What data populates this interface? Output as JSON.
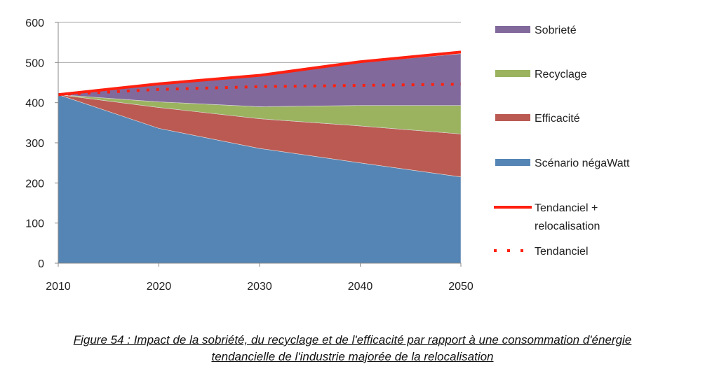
{
  "chart_data": {
    "type": "area",
    "title": "",
    "xlabel": "",
    "ylabel": "",
    "x": [
      2010,
      2020,
      2030,
      2040,
      2050
    ],
    "ylim": [
      0,
      600
    ],
    "yticks": [
      0,
      100,
      200,
      300,
      400,
      500,
      600
    ],
    "xticks": [
      2010,
      2020,
      2030,
      2040,
      2050
    ],
    "grid": "horizontal",
    "legend_position": "right",
    "stacked_series": [
      {
        "name": "Scénario négaWatt",
        "color": "#5585b5",
        "values": [
          420,
          336,
          286,
          250,
          215
        ]
      },
      {
        "name": "Efficacité",
        "color": "#bb5a52",
        "values": [
          0,
          52,
          74,
          92,
          107
        ]
      },
      {
        "name": "Recyclage",
        "color": "#9bb35f",
        "values": [
          0,
          14,
          30,
          51,
          71
        ]
      },
      {
        "name": "Sobrieté",
        "color": "#82699c",
        "values": [
          0,
          44,
          76,
          107,
          129
        ]
      }
    ],
    "line_series": [
      {
        "name": "Tendanciel + relocalisation",
        "color": "#ff2010",
        "style": "solid",
        "values": [
          420,
          447,
          468,
          502,
          526
        ]
      },
      {
        "name": "Tendanciel",
        "color": "#ff2010",
        "style": "dotted",
        "values": [
          420,
          433,
          440,
          443,
          446
        ]
      }
    ],
    "legend": [
      "Sobrieté",
      "Recyclage",
      "Efficacité",
      "Scénario négaWatt",
      "Tendanciel + relocalisation",
      "Tendanciel"
    ]
  },
  "caption": {
    "line1": "Figure 54 : Impact de la sobriété, du recyclage et de l'efficacité par rapport à une consommation d'énergie",
    "line2": "tendancielle de l'industrie majorée de la relocalisation"
  }
}
